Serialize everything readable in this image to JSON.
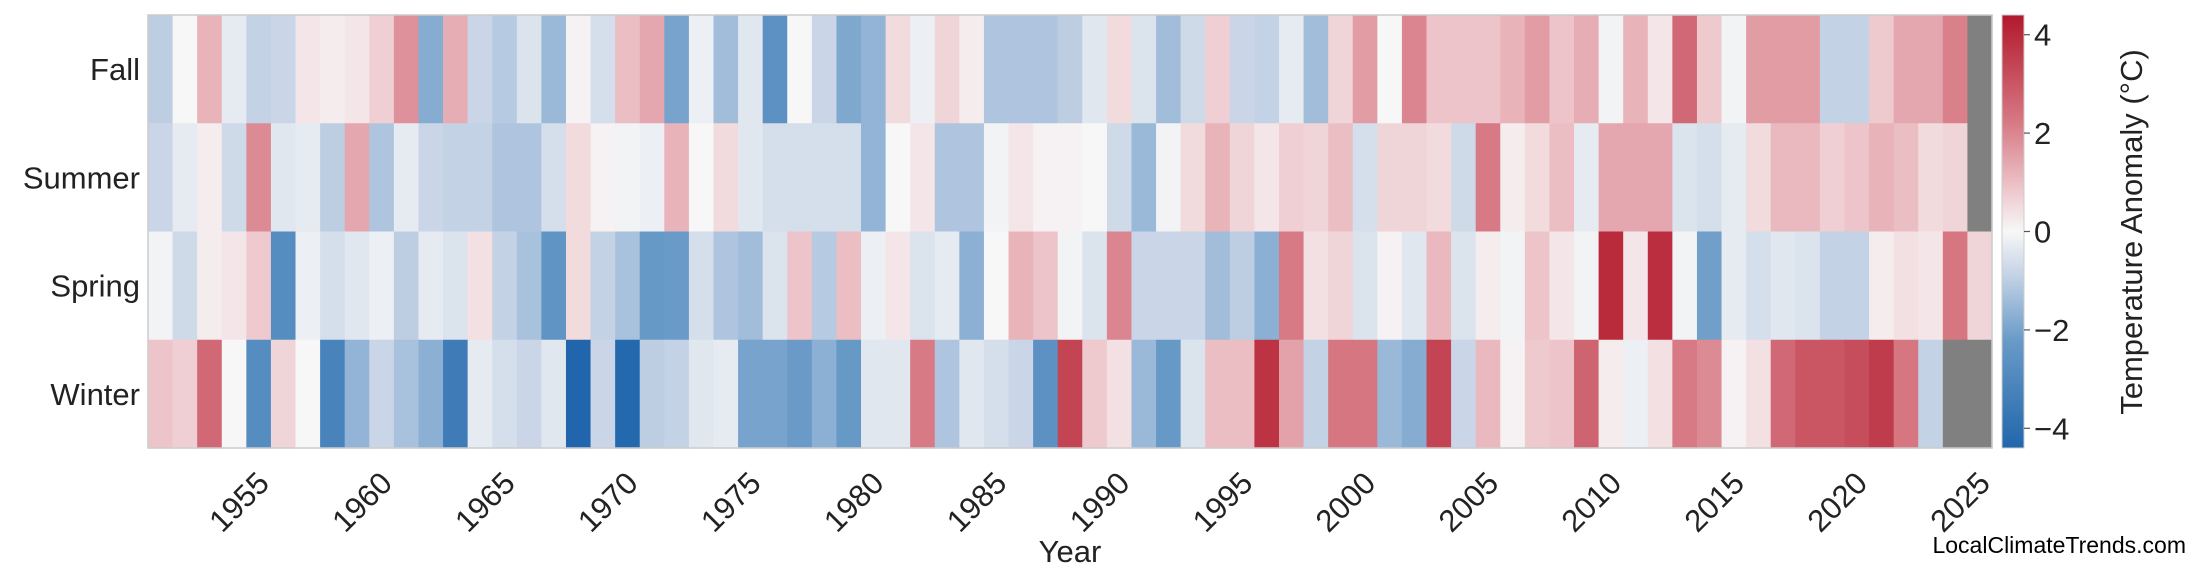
{
  "chart_data": {
    "type": "heatmap",
    "xlabel": "Year",
    "ylabel": "",
    "colorbar_label": "Temperature Anomaly (°C)",
    "colorbar_ticks": [
      "−4",
      "−2",
      "0",
      "2",
      "4"
    ],
    "colorbar_range": [
      -4.4,
      4.4
    ],
    "x_start": 1951,
    "x_end": 2025,
    "x_ticks": [
      "1955",
      "1960",
      "1965",
      "1970",
      "1975",
      "1980",
      "1985",
      "1990",
      "1995",
      "2000",
      "2005",
      "2010",
      "2015",
      "2020",
      "2025"
    ],
    "rows": [
      "Fall",
      "Summer",
      "Spring",
      "Winter"
    ],
    "missing_color": "#808080",
    "values": {
      "Fall": [
        -1.0,
        0.0,
        1.2,
        -0.3,
        -0.9,
        -0.8,
        0.3,
        0.2,
        0.3,
        0.7,
        1.8,
        -1.8,
        1.3,
        -0.8,
        -1.1,
        -0.5,
        -1.5,
        0.1,
        -0.6,
        1.0,
        1.4,
        -2.0,
        -0.2,
        -1.4,
        -0.4,
        -2.6,
        0.0,
        -0.8,
        -1.9,
        -1.6,
        0.5,
        -0.2,
        0.6,
        0.2,
        -1.2,
        -1.2,
        -1.2,
        -1.0,
        -0.4,
        0.5,
        -0.5,
        -1.4,
        -0.7,
        0.7,
        -0.8,
        -0.9,
        -0.3,
        -1.4,
        0.6,
        1.6,
        0.0,
        2.0,
        0.9,
        0.9,
        0.9,
        1.2,
        1.6,
        0.9,
        1.3,
        -0.1,
        1.2,
        0.3,
        2.6,
        0.8,
        -0.1,
        1.6,
        1.6,
        1.6,
        -0.9,
        -0.9,
        0.8,
        1.4,
        1.4,
        2.1,
        null
      ],
      "Summer": [
        -0.8,
        -0.3,
        0.2,
        -0.7,
        1.9,
        -0.4,
        -0.3,
        -1.0,
        1.4,
        -1.2,
        -0.3,
        -0.8,
        -0.9,
        -0.9,
        -1.2,
        -1.2,
        -0.6,
        0.5,
        0.1,
        -0.1,
        -0.2,
        1.2,
        0.0,
        0.5,
        -0.4,
        -0.6,
        -0.6,
        -0.6,
        -0.6,
        -1.6,
        0.0,
        0.3,
        -1.2,
        -1.2,
        -0.1,
        0.3,
        0.1,
        0.1,
        0.0,
        -0.7,
        -1.5,
        -0.1,
        0.5,
        1.2,
        0.6,
        0.3,
        0.7,
        0.6,
        1.0,
        -0.6,
        0.6,
        0.6,
        0.5,
        -0.7,
        2.2,
        0.2,
        0.5,
        1.0,
        -0.3,
        1.4,
        1.4,
        1.4,
        -0.5,
        -0.6,
        -0.3,
        0.5,
        1.1,
        1.1,
        0.7,
        0.9,
        1.2,
        1.0,
        0.5,
        0.6,
        null
      ],
      "Spring": [
        -0.1,
        -0.7,
        0.2,
        0.3,
        0.8,
        -2.8,
        -0.2,
        -0.6,
        -0.4,
        -0.2,
        -1.0,
        -0.3,
        -0.5,
        0.4,
        -0.9,
        -1.3,
        -2.5,
        0.5,
        -0.9,
        -1.3,
        -2.3,
        -2.2,
        -0.6,
        -1.2,
        -1.4,
        -0.5,
        0.9,
        -1.1,
        1.0,
        -0.2,
        0.3,
        -0.5,
        -0.3,
        -1.7,
        0.0,
        1.2,
        0.9,
        -0.1,
        -0.5,
        2.0,
        -0.8,
        -0.8,
        -0.8,
        -1.4,
        -1.0,
        -1.7,
        2.2,
        0.4,
        0.6,
        -0.5,
        0.1,
        -0.4,
        1.1,
        -0.5,
        0.2,
        -0.1,
        0.9,
        0.3,
        -0.1,
        4.0,
        0.3,
        3.9,
        -0.1,
        -2.1,
        -0.3,
        -0.6,
        -0.4,
        -0.5,
        -0.9,
        -0.9,
        0.2,
        0.4,
        0.3,
        2.3,
        0.6
      ],
      "Winter": [
        0.9,
        0.7,
        2.6,
        0.0,
        -2.8,
        0.6,
        0.0,
        -3.2,
        -1.6,
        -0.8,
        -1.3,
        -1.7,
        -3.5,
        -0.3,
        -0.6,
        -0.8,
        -0.4,
        -4.4,
        -0.8,
        -4.3,
        -1.0,
        -0.9,
        -0.4,
        -0.3,
        -2.0,
        -2.0,
        -2.2,
        -1.7,
        -2.3,
        -0.4,
        -0.4,
        2.2,
        -1.2,
        -0.4,
        -0.6,
        -0.8,
        -2.6,
        3.4,
        0.8,
        0.4,
        -1.5,
        -2.3,
        -0.5,
        1.0,
        1.0,
        3.8,
        1.5,
        -0.9,
        2.3,
        2.3,
        -1.5,
        -1.8,
        3.4,
        -0.8,
        1.1,
        0.1,
        0.8,
        0.9,
        2.7,
        0.2,
        -0.2,
        0.4,
        2.2,
        1.9,
        0.1,
        0.4,
        2.6,
        3.0,
        3.0,
        3.2,
        3.6,
        2.3,
        -0.9,
        null,
        null
      ]
    }
  },
  "watermark": "LocalClimateTrends.com"
}
